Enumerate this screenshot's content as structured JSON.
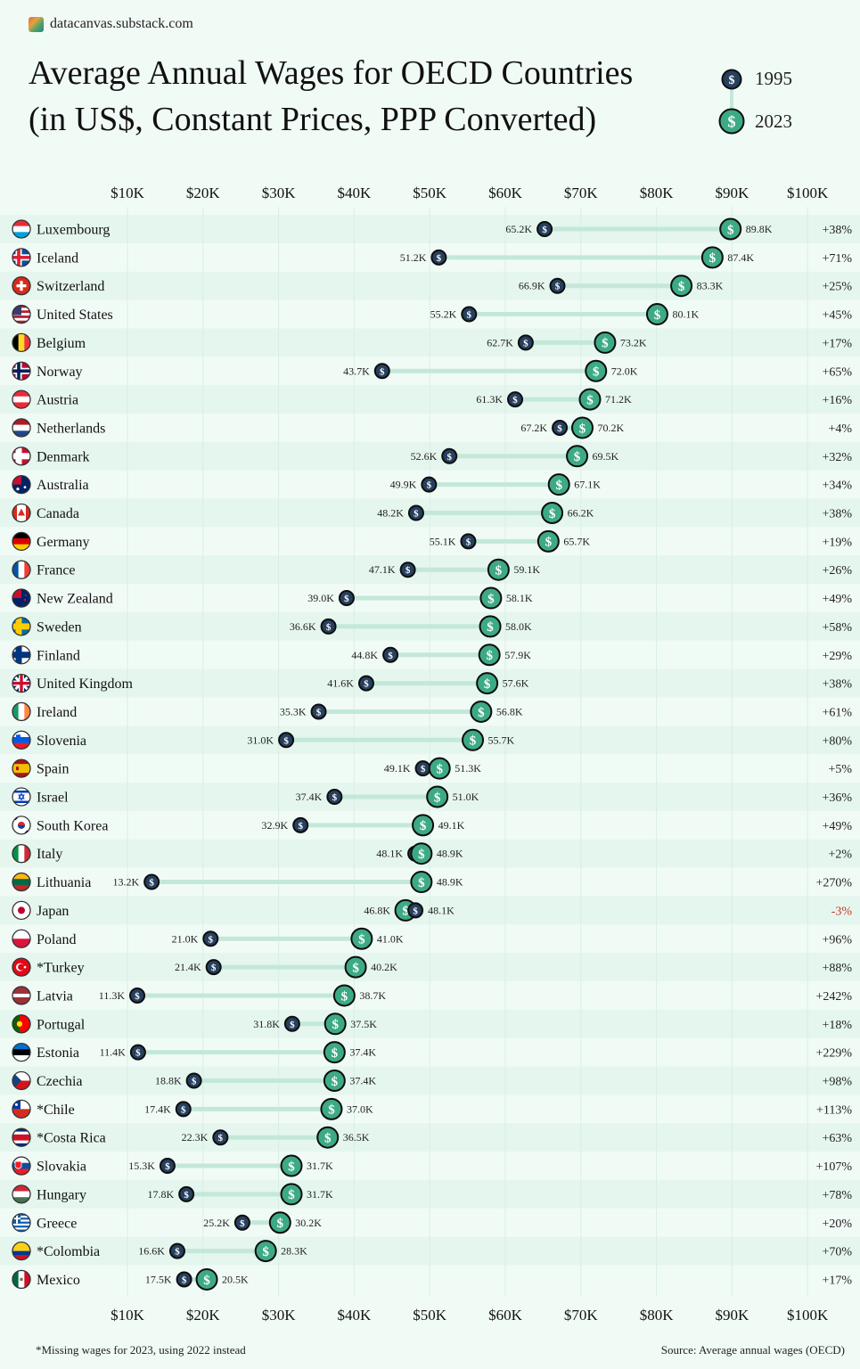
{
  "site": "datacanvas.substack.com",
  "title_line1": "Average Annual Wages for OECD Countries",
  "title_line2": "(in US$, Constant Prices, PPP Converted)",
  "legend": {
    "y1995": "1995",
    "y2023": "2023"
  },
  "footnote": "*Missing wages for 2023, using 2022 instead",
  "source": "Source: Average annual wages (OECD)",
  "colors": {
    "background": "#f1fbf6",
    "row_alt": "#e5f6ee",
    "marker_1995": "#26405e",
    "marker_2023": "#3daa86",
    "connector": "#c3e8da",
    "negative": "#c0392b"
  },
  "chart_data": {
    "type": "dumbbell",
    "title": "Average Annual Wages for OECD Countries (in US$, Constant Prices, PPP Converted)",
    "xlim": [
      10000,
      100000
    ],
    "x_ticks": [
      "$10K",
      "$20K",
      "$30K",
      "$40K",
      "$50K",
      "$60K",
      "$70K",
      "$80K",
      "$90K",
      "$100K"
    ],
    "series": [
      {
        "name": "1995",
        "marker": "small-dark-dollar"
      },
      {
        "name": "2023",
        "marker": "large-green-dollar"
      }
    ],
    "rows": [
      {
        "country": "Luxembourg",
        "flag": "LU",
        "v1995": 65.2,
        "v2023": 89.8,
        "l1995": "65.2K",
        "l2023": "89.8K",
        "change": "+38%"
      },
      {
        "country": "Iceland",
        "flag": "IS",
        "v1995": 51.2,
        "v2023": 87.4,
        "l1995": "51.2K",
        "l2023": "87.4K",
        "change": "+71%"
      },
      {
        "country": "Switzerland",
        "flag": "CH",
        "v1995": 66.9,
        "v2023": 83.3,
        "l1995": "66.9K",
        "l2023": "83.3K",
        "change": "+25%"
      },
      {
        "country": "United States",
        "flag": "US",
        "v1995": 55.2,
        "v2023": 80.1,
        "l1995": "55.2K",
        "l2023": "80.1K",
        "change": "+45%"
      },
      {
        "country": "Belgium",
        "flag": "BE",
        "v1995": 62.7,
        "v2023": 73.2,
        "l1995": "62.7K",
        "l2023": "73.2K",
        "change": "+17%"
      },
      {
        "country": "Norway",
        "flag": "NO",
        "v1995": 43.7,
        "v2023": 72.0,
        "l1995": "43.7K",
        "l2023": "72.0K",
        "change": "+65%"
      },
      {
        "country": "Austria",
        "flag": "AT",
        "v1995": 61.3,
        "v2023": 71.2,
        "l1995": "61.3K",
        "l2023": "71.2K",
        "change": "+16%"
      },
      {
        "country": "Netherlands",
        "flag": "NL",
        "v1995": 67.2,
        "v2023": 70.2,
        "l1995": "67.2K",
        "l2023": "70.2K",
        "change": "+4%"
      },
      {
        "country": "Denmark",
        "flag": "DK",
        "v1995": 52.6,
        "v2023": 69.5,
        "l1995": "52.6K",
        "l2023": "69.5K",
        "change": "+32%"
      },
      {
        "country": "Australia",
        "flag": "AU",
        "v1995": 49.9,
        "v2023": 67.1,
        "l1995": "49.9K",
        "l2023": "67.1K",
        "change": "+34%"
      },
      {
        "country": "Canada",
        "flag": "CA",
        "v1995": 48.2,
        "v2023": 66.2,
        "l1995": "48.2K",
        "l2023": "66.2K",
        "change": "+38%"
      },
      {
        "country": "Germany",
        "flag": "DE",
        "v1995": 55.1,
        "v2023": 65.7,
        "l1995": "55.1K",
        "l2023": "65.7K",
        "change": "+19%"
      },
      {
        "country": "France",
        "flag": "FR",
        "v1995": 47.1,
        "v2023": 59.1,
        "l1995": "47.1K",
        "l2023": "59.1K",
        "change": "+26%"
      },
      {
        "country": "New Zealand",
        "flag": "NZ",
        "v1995": 39.0,
        "v2023": 58.1,
        "l1995": "39.0K",
        "l2023": "58.1K",
        "change": "+49%"
      },
      {
        "country": "Sweden",
        "flag": "SE",
        "v1995": 36.6,
        "v2023": 58.0,
        "l1995": "36.6K",
        "l2023": "58.0K",
        "change": "+58%"
      },
      {
        "country": "Finland",
        "flag": "FI",
        "v1995": 44.8,
        "v2023": 57.9,
        "l1995": "44.8K",
        "l2023": "57.9K",
        "change": "+29%"
      },
      {
        "country": "United Kingdom",
        "flag": "GB",
        "v1995": 41.6,
        "v2023": 57.6,
        "l1995": "41.6K",
        "l2023": "57.6K",
        "change": "+38%"
      },
      {
        "country": "Ireland",
        "flag": "IE",
        "v1995": 35.3,
        "v2023": 56.8,
        "l1995": "35.3K",
        "l2023": "56.8K",
        "change": "+61%"
      },
      {
        "country": "Slovenia",
        "flag": "SI",
        "v1995": 31.0,
        "v2023": 55.7,
        "l1995": "31.0K",
        "l2023": "55.7K",
        "change": "+80%"
      },
      {
        "country": "Spain",
        "flag": "ES",
        "v1995": 49.1,
        "v2023": 51.3,
        "l1995": "49.1K",
        "l2023": "51.3K",
        "change": "+5%"
      },
      {
        "country": "Israel",
        "flag": "IL",
        "v1995": 37.4,
        "v2023": 51.0,
        "l1995": "37.4K",
        "l2023": "51.0K",
        "change": "+36%"
      },
      {
        "country": "South Korea",
        "flag": "KR",
        "v1995": 32.9,
        "v2023": 49.1,
        "l1995": "32.9K",
        "l2023": "49.1K",
        "change": "+49%"
      },
      {
        "country": "Italy",
        "flag": "IT",
        "v1995": 48.1,
        "v2023": 48.9,
        "l1995": "48.1K",
        "l2023": "48.9K",
        "change": "+2%"
      },
      {
        "country": "Lithuania",
        "flag": "LT",
        "v1995": 13.2,
        "v2023": 48.9,
        "l1995": "13.2K",
        "l2023": "48.9K",
        "change": "+270%"
      },
      {
        "country": "Japan",
        "flag": "JP",
        "v1995": 48.1,
        "v2023": 46.8,
        "l1995": "48.1K",
        "l2023": "46.8K",
        "change": "-3%"
      },
      {
        "country": "Poland",
        "flag": "PL",
        "v1995": 21.0,
        "v2023": 41.0,
        "l1995": "21.0K",
        "l2023": "41.0K",
        "change": "+96%"
      },
      {
        "country": "*Turkey",
        "flag": "TR",
        "v1995": 21.4,
        "v2023": 40.2,
        "l1995": "21.4K",
        "l2023": "40.2K",
        "change": "+88%"
      },
      {
        "country": "Latvia",
        "flag": "LV",
        "v1995": 11.3,
        "v2023": 38.7,
        "l1995": "11.3K",
        "l2023": "38.7K",
        "change": "+242%"
      },
      {
        "country": "Portugal",
        "flag": "PT",
        "v1995": 31.8,
        "v2023": 37.5,
        "l1995": "31.8K",
        "l2023": "37.5K",
        "change": "+18%"
      },
      {
        "country": "Estonia",
        "flag": "EE",
        "v1995": 11.4,
        "v2023": 37.4,
        "l1995": "11.4K",
        "l2023": "37.4K",
        "change": "+229%"
      },
      {
        "country": "Czechia",
        "flag": "CZ",
        "v1995": 18.8,
        "v2023": 37.4,
        "l1995": "18.8K",
        "l2023": "37.4K",
        "change": "+98%"
      },
      {
        "country": "*Chile",
        "flag": "CL",
        "v1995": 17.4,
        "v2023": 37.0,
        "l1995": "17.4K",
        "l2023": "37.0K",
        "change": "+113%"
      },
      {
        "country": "*Costa Rica",
        "flag": "CR",
        "v1995": 22.3,
        "v2023": 36.5,
        "l1995": "22.3K",
        "l2023": "36.5K",
        "change": "+63%"
      },
      {
        "country": "Slovakia",
        "flag": "SK",
        "v1995": 15.3,
        "v2023": 31.7,
        "l1995": "15.3K",
        "l2023": "31.7K",
        "change": "+107%"
      },
      {
        "country": "Hungary",
        "flag": "HU",
        "v1995": 17.8,
        "v2023": 31.7,
        "l1995": "17.8K",
        "l2023": "31.7K",
        "change": "+78%"
      },
      {
        "country": "Greece",
        "flag": "GR",
        "v1995": 25.2,
        "v2023": 30.2,
        "l1995": "25.2K",
        "l2023": "30.2K",
        "change": "+20%"
      },
      {
        "country": "*Colombia",
        "flag": "CO",
        "v1995": 16.6,
        "v2023": 28.3,
        "l1995": "16.6K",
        "l2023": "28.3K",
        "change": "+70%"
      },
      {
        "country": "Mexico",
        "flag": "MX",
        "v1995": 17.5,
        "v2023": 20.5,
        "l1995": "17.5K",
        "l2023": "20.5K",
        "change": "+17%"
      }
    ]
  }
}
